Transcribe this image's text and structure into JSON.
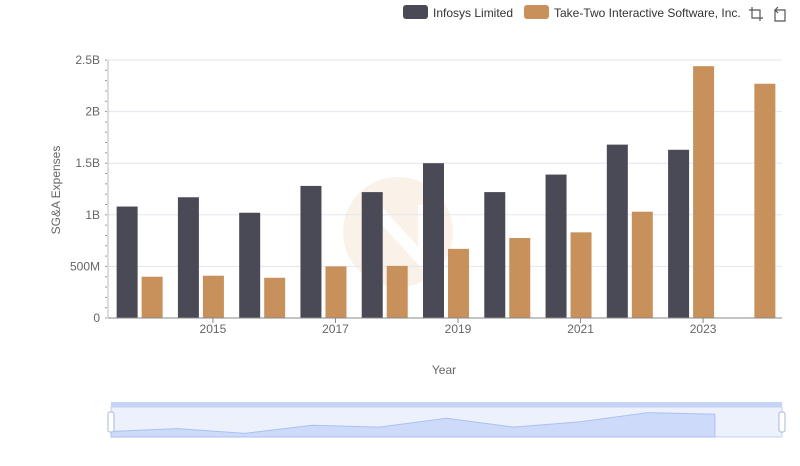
{
  "chart_data": {
    "type": "bar",
    "title": "",
    "xlabel": "Year",
    "ylabel": "SG&A Expenses",
    "categories": [
      "2014",
      "2015",
      "2016",
      "2017",
      "2018",
      "2019",
      "2020",
      "2021",
      "2022",
      "2023",
      "2024"
    ],
    "x_tick_labels": [
      "2015",
      "2017",
      "2019",
      "2021",
      "2023"
    ],
    "y_ticks": [
      {
        "value": 0,
        "label": "0"
      },
      {
        "value": 500000000,
        "label": "500M"
      },
      {
        "value": 1000000000,
        "label": "1B"
      },
      {
        "value": 1500000000,
        "label": "1.5B"
      },
      {
        "value": 2000000000,
        "label": "2B"
      },
      {
        "value": 2500000000,
        "label": "2.5B"
      }
    ],
    "ylim": [
      0,
      2500000000
    ],
    "grid": true,
    "legend_position": "top-right",
    "series": [
      {
        "name": "Infosys Limited",
        "color": "#4a4a56",
        "values": [
          1080000000,
          1170000000,
          1020000000,
          1280000000,
          1220000000,
          1500000000,
          1220000000,
          1390000000,
          1680000000,
          1630000000,
          null
        ]
      },
      {
        "name": "Take-Two Interactive Software, Inc.",
        "color": "#c8915b",
        "values": [
          400000000,
          410000000,
          390000000,
          500000000,
          505000000,
          670000000,
          775000000,
          830000000,
          1030000000,
          2440000000,
          2270000000
        ]
      }
    ]
  },
  "toolbar": {
    "icons": [
      "crop-select-icon",
      "reset-zoom-icon"
    ]
  },
  "colors": {
    "grid": "#e3e6ee",
    "axis_text": "#666666",
    "slider_fill": "#d6e1fb",
    "slider_border": "#c5d3f5",
    "watermark": "#f5e6d8"
  }
}
